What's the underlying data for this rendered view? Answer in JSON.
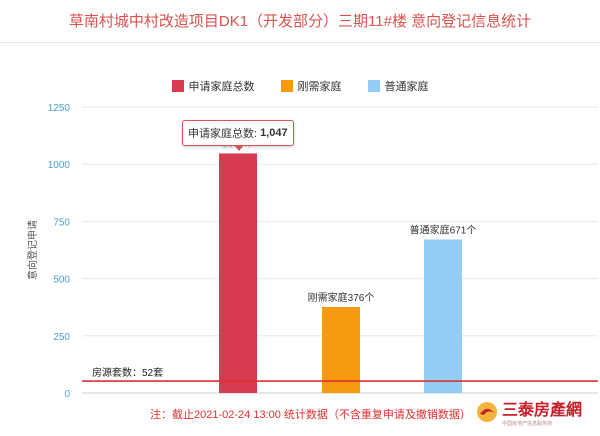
{
  "title": "草南村城中村改造项目DK1（开发部分）三期11#楼 意向登记信息统计",
  "chart_data": {
    "type": "bar",
    "ylabel": "意向登记申请",
    "ylim": [
      0,
      1250
    ],
    "yticks": [
      0,
      250,
      500,
      750,
      1000,
      1250
    ],
    "grid": true,
    "legend_position": "top",
    "series": [
      {
        "name": "申请家庭总数",
        "color": "#d63b52",
        "value": 1047,
        "label": "1047个"
      },
      {
        "name": "刚需家庭",
        "color": "#f79a10",
        "value": 376,
        "label": "刚需家庭376个"
      },
      {
        "name": "普通家庭",
        "color": "#93cdf6",
        "value": 671,
        "label": "普通家庭671个"
      }
    ],
    "reference_line": {
      "value": 52,
      "label": "房源套数：52套",
      "color": "#e0312f"
    },
    "tooltip": {
      "label": "申请家庭总数:",
      "value": "1,047"
    }
  },
  "note": "注：截止2021-02-24 13:00 统计数据（不含重复申请及撤销数据）",
  "logo": {
    "name": "三泰房產網",
    "sub": "中国房地产信息服务商"
  }
}
